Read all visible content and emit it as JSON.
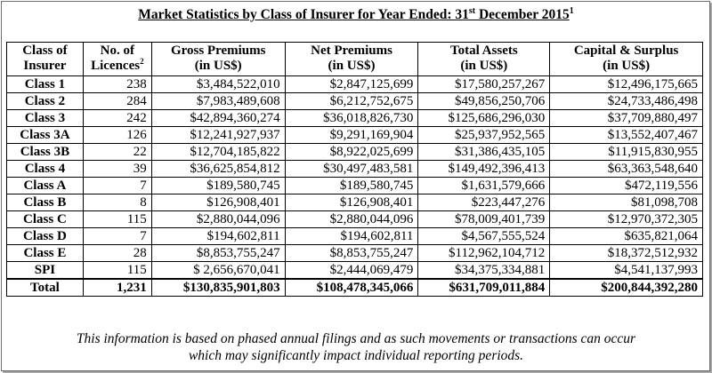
{
  "title": {
    "text": "Market Statistics by Class of Insurer for Year Ended: 31",
    "suffix": "st",
    "text2": " December 2015",
    "footnote": "1"
  },
  "headers": {
    "class_line1": "Class of",
    "class_line2": "Insurer",
    "licences_line1": "No. of",
    "licences_line2": "Licences",
    "licences_footnote": "2",
    "gross_line1": "Gross Premiums",
    "gross_line2": "(in US$)",
    "net_line1": "Net Premiums",
    "net_line2": "(in US$)",
    "assets_line1": "Total Assets",
    "assets_line2": "(in US$)",
    "capital_line1": "Capital & Surplus",
    "capital_line2": "(in US$)"
  },
  "rows": [
    [
      "Class 1",
      "238",
      "$3,484,522,010",
      "$2,847,125,699",
      "$17,580,257,267",
      "$12,496,175,665"
    ],
    [
      "Class 2",
      "284",
      "$7,983,489,608",
      "$6,212,752,675",
      "$49,856,250,706",
      "$24,733,486,498"
    ],
    [
      "Class 3",
      "242",
      "$42,894,360,274",
      "$36,018,826,730",
      "$125,686,296,030",
      "$37,709,880,497"
    ],
    [
      "Class 3A",
      "126",
      "$12,241,927,937",
      "$9,291,169,904",
      "$25,937,952,565",
      "$13,552,407,467"
    ],
    [
      "Class 3B",
      "22",
      "$12,704,185,822",
      "$8,922,025,699",
      "$31,386,435,105",
      "$11,915,830,955"
    ],
    [
      "Class 4",
      "39",
      "$36,625,854,812",
      "$30,497,483,581",
      "$149,492,396,413",
      "$63,363,548,640"
    ],
    [
      "Class A",
      "7",
      "$189,580,745",
      "$189,580,745",
      "$1,631,579,666",
      "$472,119,556"
    ],
    [
      "Class B",
      "8",
      "$126,908,401",
      "$126,908,401",
      "$223,447,276",
      "$81,098,708"
    ],
    [
      "Class C",
      "115",
      "$2,880,044,096",
      "$2,880,044,096",
      "$78,009,401,739",
      "$12,970,372,305"
    ],
    [
      "Class D",
      "7",
      "$194,602,811",
      "$194,602,811",
      "$4,567,555,524",
      "$635,821,064"
    ],
    [
      "Class E",
      "28",
      "$8,853,755,247",
      "$8,853,755,247",
      "$112,962,104,712",
      "$18,372,512,932"
    ],
    [
      "SPI",
      "115",
      "$ 2,656,670,041",
      "$2,444,069,479",
      "$34,375,334,881",
      "$4,541,137,993"
    ]
  ],
  "total": [
    "Total",
    "1,231",
    "$130,835,901,803",
    "$108,478,345,066",
    "$631,709,011,884",
    "$200,844,392,280"
  ],
  "note": {
    "line1": "This information is based on phased annual filings and as such movements or transactions can occur",
    "line2": "which may significantly impact individual reporting periods."
  }
}
